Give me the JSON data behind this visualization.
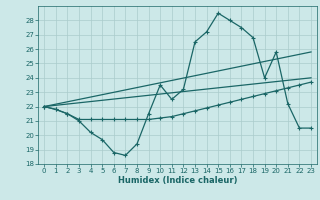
{
  "background_color": "#cce8e8",
  "grid_color": "#aacccc",
  "line_color": "#1a6666",
  "xlabel": "Humidex (Indice chaleur)",
  "xlim": [
    -0.5,
    23.5
  ],
  "ylim": [
    18,
    29
  ],
  "yticks": [
    18,
    19,
    20,
    21,
    22,
    23,
    24,
    25,
    26,
    27,
    28
  ],
  "xticks": [
    0,
    1,
    2,
    3,
    4,
    5,
    6,
    7,
    8,
    9,
    10,
    11,
    12,
    13,
    14,
    15,
    16,
    17,
    18,
    19,
    20,
    21,
    22,
    23
  ],
  "line1_x": [
    0,
    1,
    2,
    3,
    4,
    5,
    6,
    7,
    8,
    9,
    10,
    11,
    12,
    13,
    14,
    15,
    16,
    17,
    18,
    19,
    20,
    21,
    22,
    23
  ],
  "line1_y": [
    22.0,
    21.8,
    21.5,
    21.0,
    20.2,
    19.7,
    18.8,
    18.6,
    19.4,
    21.5,
    23.5,
    22.5,
    23.2,
    26.5,
    27.2,
    28.5,
    28.0,
    27.5,
    26.8,
    24.0,
    25.8,
    22.2,
    20.5,
    20.5
  ],
  "line2_x": [
    0,
    1,
    2,
    3,
    4,
    5,
    6,
    7,
    8,
    9,
    10,
    11,
    12,
    13,
    14,
    15,
    16,
    17,
    18,
    19,
    20,
    21,
    22,
    23
  ],
  "line2_y": [
    22.0,
    21.8,
    21.5,
    21.1,
    21.1,
    21.1,
    21.1,
    21.1,
    21.1,
    21.1,
    21.2,
    21.3,
    21.5,
    21.7,
    21.9,
    22.1,
    22.3,
    22.5,
    22.7,
    22.9,
    23.1,
    23.3,
    23.5,
    23.7
  ],
  "line3_x": [
    0,
    23
  ],
  "line3_y": [
    22.0,
    24.0
  ],
  "line4_x": [
    0,
    23
  ],
  "line4_y": [
    22.0,
    25.8
  ]
}
